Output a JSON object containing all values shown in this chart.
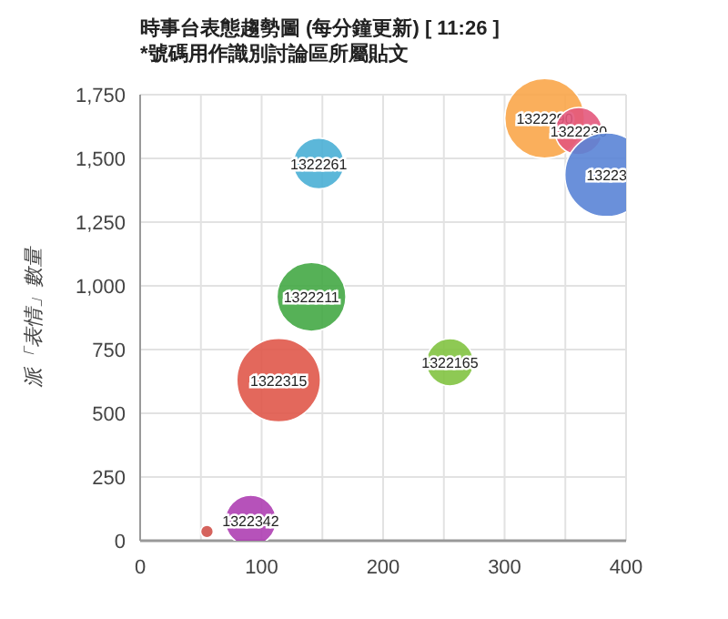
{
  "chart_data": {
    "type": "bubble",
    "title": "時事台表態趨勢圖 (每分鐘更新) [ 11:26 ]",
    "subtitle": "*號碼用作識別討論區所屬貼文",
    "ylabel": "派「表情」數量",
    "xlim": [
      0,
      400
    ],
    "ylim": [
      0,
      1750
    ],
    "xticks": [
      0,
      {
        "value": 50,
        "label": null
      },
      100,
      {
        "value": 150,
        "label": null
      },
      200,
      {
        "value": 250,
        "label": null
      },
      300,
      {
        "value": 350,
        "label": null
      },
      400
    ],
    "yticks": [
      0,
      {
        "value": 250,
        "label": "250"
      },
      {
        "value": 500,
        "label": "500"
      },
      {
        "value": 750,
        "label": "750"
      },
      {
        "value": 1000,
        "label": "1,000"
      },
      {
        "value": 1250,
        "label": "1,250"
      },
      {
        "value": 1500,
        "label": "1,500"
      },
      {
        "value": 1750,
        "label": "1,750"
      }
    ],
    "grid": true,
    "series": [
      {
        "name": "1322261",
        "color": "#4aafd5",
        "x": [
          147
        ],
        "values": [
          1480
        ],
        "sizes": [
          0.37
        ]
      },
      {
        "name": "1322211",
        "color": "#44a845",
        "x": [
          141
        ],
        "values": [
          957
        ],
        "sizes": [
          0.68
        ]
      },
      {
        "name": "1322315",
        "color": "#e0584a",
        "x": [
          114
        ],
        "values": [
          630
        ],
        "sizes": [
          1
        ]
      },
      {
        "name": "1322342",
        "color": "#ae3fb2",
        "x": [
          91
        ],
        "values": [
          79
        ],
        "sizes": [
          0.37
        ]
      },
      {
        "color": "#d0524b",
        "x": [
          55
        ],
        "values": [
          36
        ],
        "sizes": [
          0.023
        ]
      },
      {
        "name": "1322165",
        "color": "#82c341",
        "x": [
          255
        ],
        "values": [
          700
        ],
        "sizes": [
          0.32
        ]
      },
      {
        "name": "1322290",
        "color": "#f9a64a",
        "x": [
          333
        ],
        "values": [
          1657
        ],
        "sizes": [
          0.91
        ]
      },
      {
        "name": "1322230",
        "color": "#e3587c",
        "x": [
          361
        ],
        "values": [
          1607
        ],
        "sizes": [
          0.32
        ]
      },
      {
        "name": "13223",
        "color": "#5a84d6",
        "x": [
          384
        ],
        "values": [
          1436
        ],
        "sizes": [
          1
        ]
      }
    ]
  }
}
